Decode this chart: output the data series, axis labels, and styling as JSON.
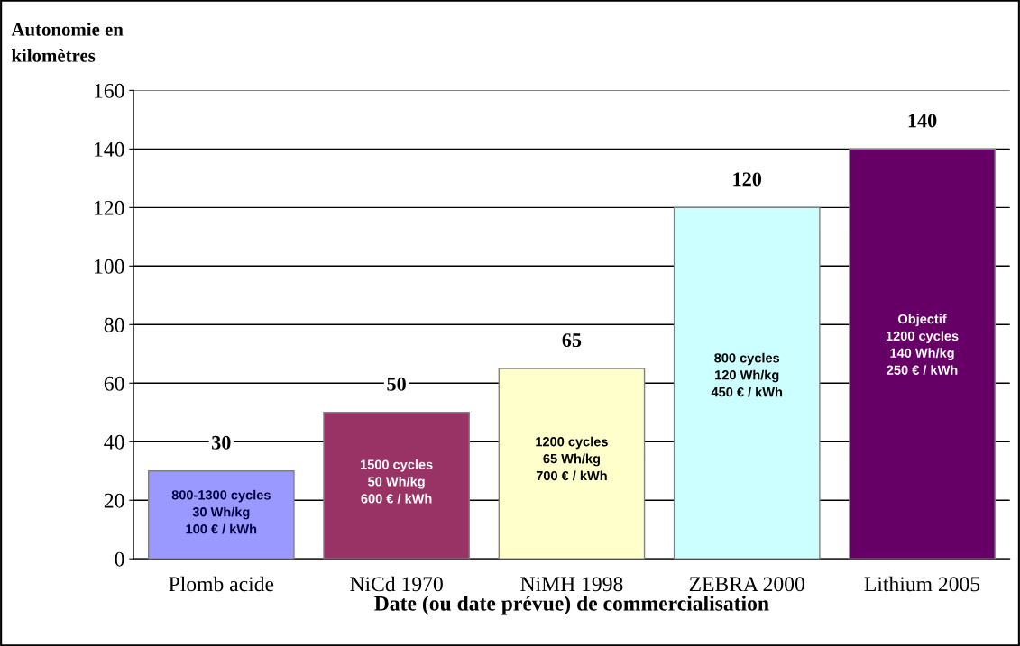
{
  "chart_data": {
    "type": "bar",
    "ylabel": "Autonomie en\nkilomètres",
    "xlabel": "Date (ou date prévue) de commercialisation",
    "categories": [
      "Plomb acide",
      "NiCd 1970",
      "NiMH 1998",
      "ZEBRA 2000",
      "Lithium 2005"
    ],
    "values": [
      30,
      50,
      65,
      120,
      140
    ],
    "colors": [
      "#9999ff",
      "#993366",
      "#ffffcc",
      "#ccffff",
      "#660066"
    ],
    "ylim": [
      0,
      160
    ],
    "yticks": [
      0,
      20,
      40,
      60,
      80,
      100,
      120,
      140,
      160
    ],
    "grid": "y",
    "data_labels": true,
    "annotations": [
      "800-1300 cycles\n30 Wh/kg\n100 € / kWh",
      "1500 cycles\n50 Wh/kg\n600 € / kWh",
      "1200 cycles\n65 Wh/kg\n700 € / kWh",
      "800 cycles\n120 Wh/kg\n450 € / kWh",
      "Objectif\n1200 cycles\n140 Wh/kg\n250 € / kWh"
    ]
  }
}
